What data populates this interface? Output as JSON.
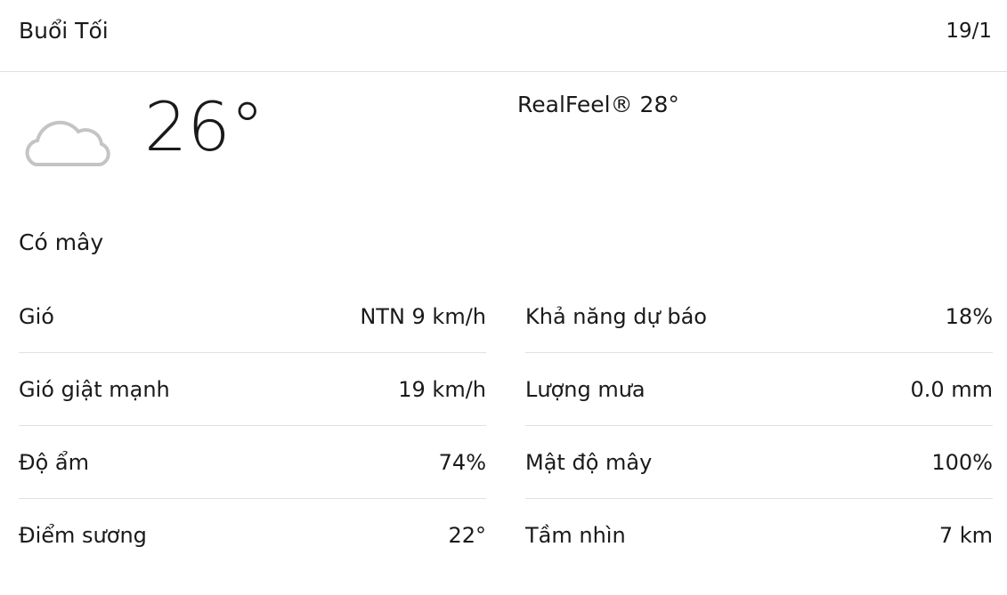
{
  "header": {
    "title": "Buổi Tối",
    "date": "19/1"
  },
  "current": {
    "icon": "cloud-icon",
    "temperature": "26°",
    "realfeel": "RealFeel® 28°",
    "phrase": "Có mây"
  },
  "left": [
    {
      "label": "Gió",
      "value": "NTN 9 km/h"
    },
    {
      "label": "Gió giật mạnh",
      "value": "19 km/h"
    },
    {
      "label": "Độ ẩm",
      "value": "74%"
    },
    {
      "label": "Điểm sương",
      "value": "22°"
    }
  ],
  "right": [
    {
      "label": "Khả năng dự báo",
      "value": "18%"
    },
    {
      "label": "Lượng mưa",
      "value": "0.0 mm"
    },
    {
      "label": "Mật độ mây",
      "value": "100%"
    },
    {
      "label": "Tầm nhìn",
      "value": "7 km"
    }
  ]
}
